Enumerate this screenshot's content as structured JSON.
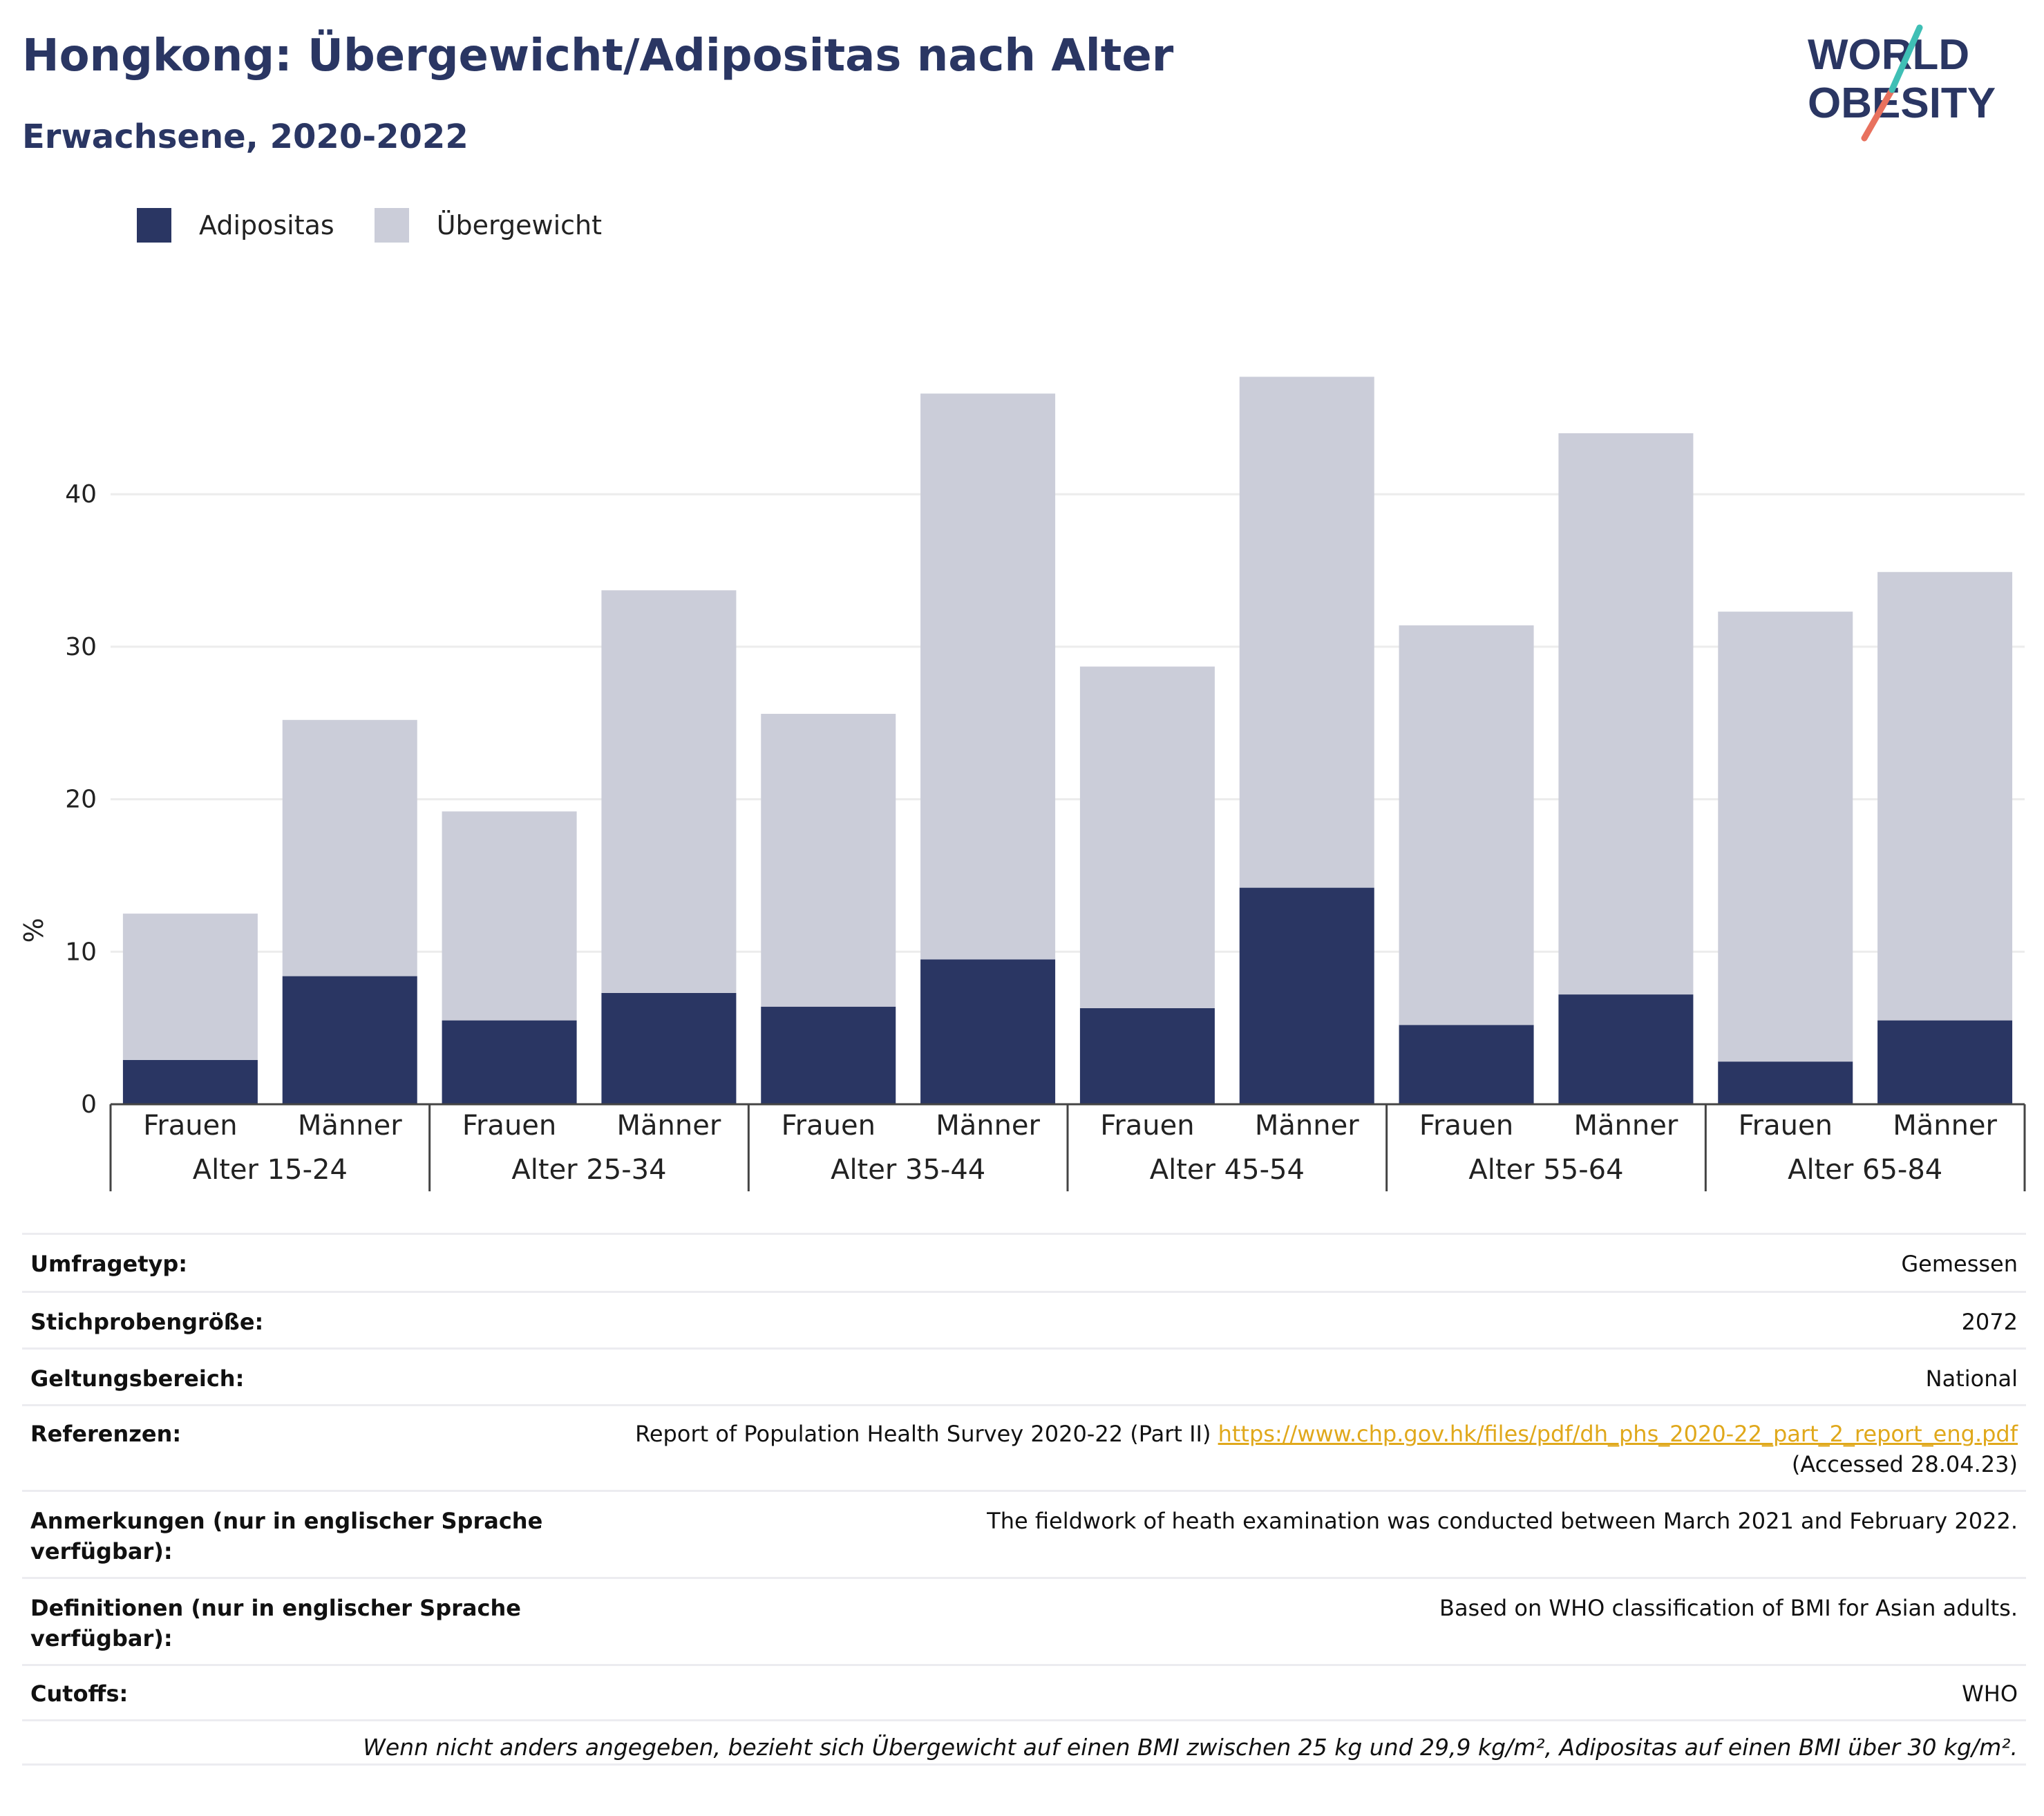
{
  "header": {
    "title": "Hongkong: Übergewicht/Adipositas nach Alter",
    "subtitle": "Erwachsene, 2020-2022",
    "logo_line1": "WORLD",
    "logo_line2": "OBESITY"
  },
  "legend": {
    "items": [
      {
        "label": "Adipositas",
        "color": "#2a3663"
      },
      {
        "label": "Übergewicht",
        "color": "#cbcdd9"
      }
    ]
  },
  "chart_data": {
    "type": "bar",
    "stacked": true,
    "ylabel": "%",
    "ylim": [
      0,
      50
    ],
    "yticks": [
      0,
      10,
      20,
      30,
      40
    ],
    "grid": true,
    "legend_position": "top-left",
    "groups": [
      {
        "label": "Alter 15-24",
        "categories": [
          "Frauen",
          "Männer"
        ]
      },
      {
        "label": "Alter 25-34",
        "categories": [
          "Frauen",
          "Männer"
        ]
      },
      {
        "label": "Alter 35-44",
        "categories": [
          "Frauen",
          "Männer"
        ]
      },
      {
        "label": "Alter 45-54",
        "categories": [
          "Frauen",
          "Männer"
        ]
      },
      {
        "label": "Alter 55-64",
        "categories": [
          "Frauen",
          "Männer"
        ]
      },
      {
        "label": "Alter 65-84",
        "categories": [
          "Frauen",
          "Männer"
        ]
      }
    ],
    "series": [
      {
        "name": "Adipositas",
        "color": "#2a3663",
        "values": [
          2.9,
          8.4,
          5.5,
          7.3,
          6.4,
          9.5,
          6.3,
          14.2,
          5.2,
          7.2,
          2.8,
          5.5
        ]
      },
      {
        "name": "Übergewicht",
        "color": "#cbcdd9",
        "values": [
          9.6,
          16.8,
          13.7,
          26.4,
          19.2,
          37.1,
          22.4,
          33.5,
          26.2,
          36.8,
          29.5,
          29.4
        ]
      }
    ]
  },
  "info": {
    "rows": [
      {
        "key": "Umfragetyp:",
        "value": "Gemessen"
      },
      {
        "key": "Stichprobengröße:",
        "value": "2072"
      },
      {
        "key": "Geltungsbereich:",
        "value": "National"
      },
      {
        "key": "Referenzen:",
        "value": "Report of Population Health Survey 2020-22 (Part II)",
        "link": "https://www.chp.gov.hk/files/pdf/dh_phs_2020-22_part_2_report_eng.pdf",
        "value2": "(Accessed 28.04.23)"
      },
      {
        "key": "Anmerkungen (nur in englischer Sprache verfügbar):",
        "value": "The fieldwork of heath examination was conducted between March 2021 and February 2022."
      },
      {
        "key": "Definitionen (nur in englischer Sprache verfügbar):",
        "value": "Based on WHO classification of BMI for Asian adults."
      },
      {
        "key": "Cutoffs:",
        "value": "WHO"
      }
    ],
    "footnote": "Wenn nicht anders angegeben, bezieht sich Übergewicht auf einen BMI zwischen 25 kg und 29,9 kg/m², Adipositas auf einen BMI über 30 kg/m²."
  }
}
